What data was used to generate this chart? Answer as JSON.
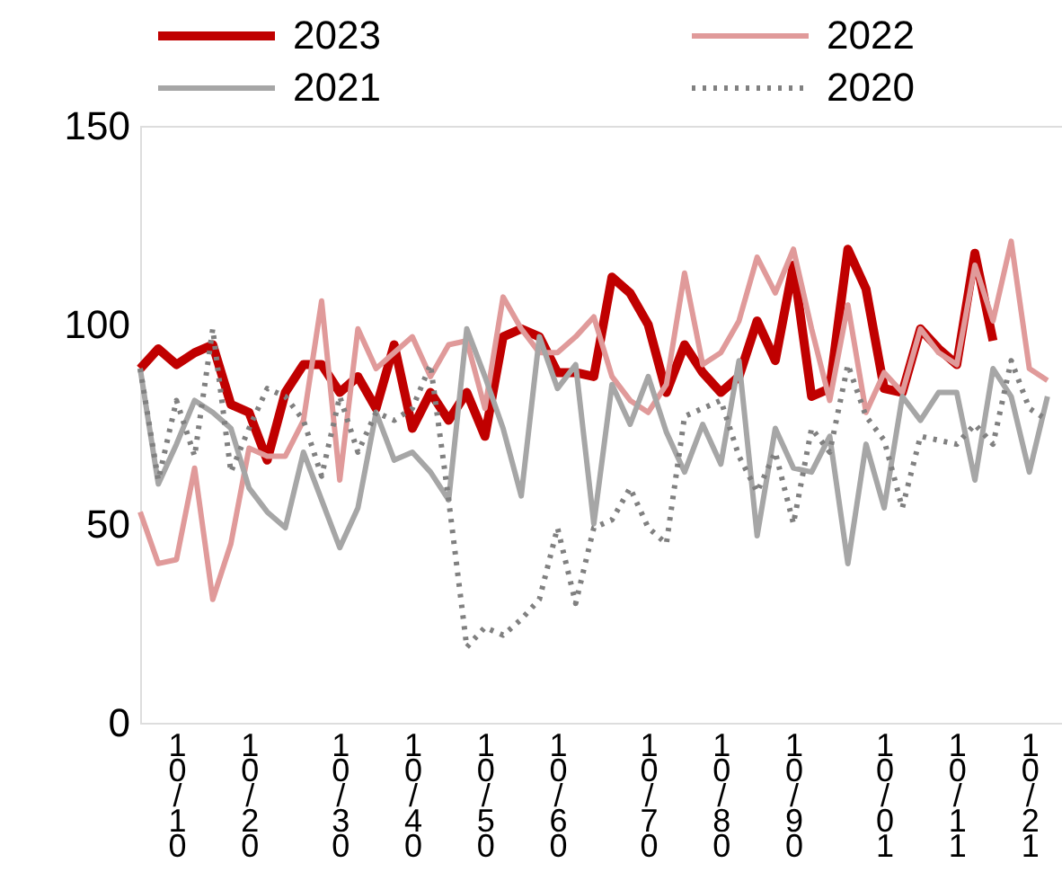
{
  "chart_data": {
    "type": "line",
    "categories": [
      null,
      null,
      "10/10",
      null,
      null,
      null,
      "10/20",
      null,
      null,
      null,
      null,
      "10/30",
      null,
      null,
      null,
      "10/40",
      null,
      null,
      null,
      "10/50",
      null,
      null,
      null,
      "10/60",
      null,
      null,
      null,
      null,
      "10/70",
      null,
      null,
      null,
      "10/80",
      null,
      null,
      null,
      "10/90",
      null,
      null,
      null,
      null,
      "10/01",
      null,
      null,
      null,
      "10/11",
      null,
      null,
      null,
      "10/21",
      null
    ],
    "ylim": [
      0,
      150
    ],
    "yticks": [
      0,
      50,
      100,
      150
    ],
    "grid": false,
    "legend": "top",
    "marker": "none",
    "series": [
      {
        "name": "2023",
        "color": "#c00000",
        "line_style": "solid",
        "values": [
          89,
          94,
          90,
          93,
          95,
          80,
          78,
          66,
          83,
          90,
          90,
          83,
          87,
          79,
          95,
          74,
          83,
          76,
          83,
          72,
          97,
          99,
          97,
          88,
          88,
          87,
          112,
          108,
          100,
          83,
          95,
          88,
          83,
          87,
          101,
          91,
          115,
          82,
          84,
          119,
          109,
          84,
          83,
          99,
          94,
          90,
          118,
          96,
          null,
          null,
          null
        ]
      },
      {
        "name": "2022",
        "color": "#e09a9a",
        "line_style": "solid",
        "values": [
          53,
          40,
          41,
          64,
          31,
          45,
          69,
          67,
          67,
          76,
          106,
          61,
          99,
          89,
          93,
          97,
          87,
          95,
          96,
          79,
          107,
          99,
          93,
          93,
          97,
          102,
          87,
          81,
          78,
          85,
          113,
          90,
          93,
          101,
          117,
          108,
          119,
          99,
          81,
          105,
          78,
          88,
          83,
          99,
          93,
          90,
          115,
          101,
          121,
          89,
          86
        ]
      },
      {
        "name": "2021",
        "color": "#a6a6a6",
        "line_style": "solid",
        "values": [
          89,
          60,
          70,
          81,
          78,
          74,
          59,
          53,
          49,
          68,
          56,
          44,
          54,
          78,
          66,
          68,
          63,
          56,
          99,
          87,
          74,
          57,
          97,
          84,
          90,
          50,
          85,
          75,
          87,
          73,
          63,
          75,
          65,
          91,
          47,
          74,
          64,
          63,
          72,
          40,
          70,
          54,
          82,
          76,
          83,
          83,
          61,
          89,
          82,
          63,
          82
        ]
      },
      {
        "name": "2020",
        "color": "#808080",
        "line_style": "dotted",
        "values": [
          89,
          61,
          81,
          67,
          99,
          63,
          74,
          84,
          82,
          76,
          62,
          82,
          68,
          78,
          76,
          79,
          90,
          56,
          19,
          24,
          22,
          26,
          31,
          49,
          30,
          49,
          51,
          59,
          49,
          45,
          77,
          79,
          81,
          67,
          58,
          68,
          50,
          74,
          68,
          90,
          77,
          71,
          54,
          72,
          71,
          70,
          75,
          70,
          91,
          79,
          76
        ]
      }
    ]
  }
}
